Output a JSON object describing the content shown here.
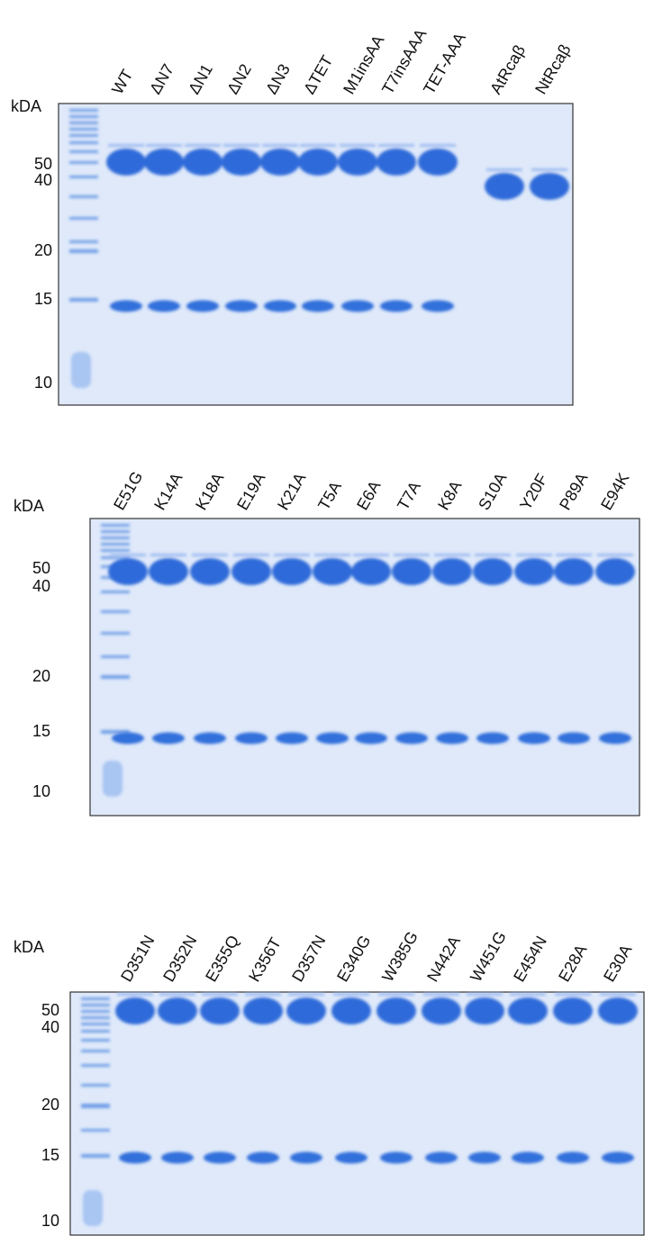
{
  "panels": [
    {
      "unit": "kDA",
      "markers": [
        "50",
        "40",
        "20",
        "15",
        "10"
      ],
      "lane_labels": [
        "WT",
        "ΔN7",
        "ΔN1",
        "ΔN2",
        "ΔN3",
        "ΔTET",
        "M1insAA",
        "T7insAAA",
        "TET-AAA",
        "AtRcaβ",
        "NtRcaβ"
      ]
    },
    {
      "unit": "kDA",
      "markers": [
        "50",
        "40",
        "20",
        "15",
        "10"
      ],
      "lane_labels": [
        "E51G",
        "K14A",
        "K18A",
        "E19A",
        "K21A",
        "T5A",
        "E6A",
        "T7A",
        "K8A",
        "S10A",
        "Y20F",
        "P89A",
        "E94K"
      ]
    },
    {
      "unit": "kDA",
      "markers": [
        "50",
        "40",
        "20",
        "15",
        "10"
      ],
      "lane_labels": [
        "D351N",
        "D352N",
        "E355Q",
        "K356T",
        "D357N",
        "E340G",
        "W385G",
        "N442A",
        "W451G",
        "E454N",
        "E28A",
        "E30A"
      ]
    }
  ]
}
